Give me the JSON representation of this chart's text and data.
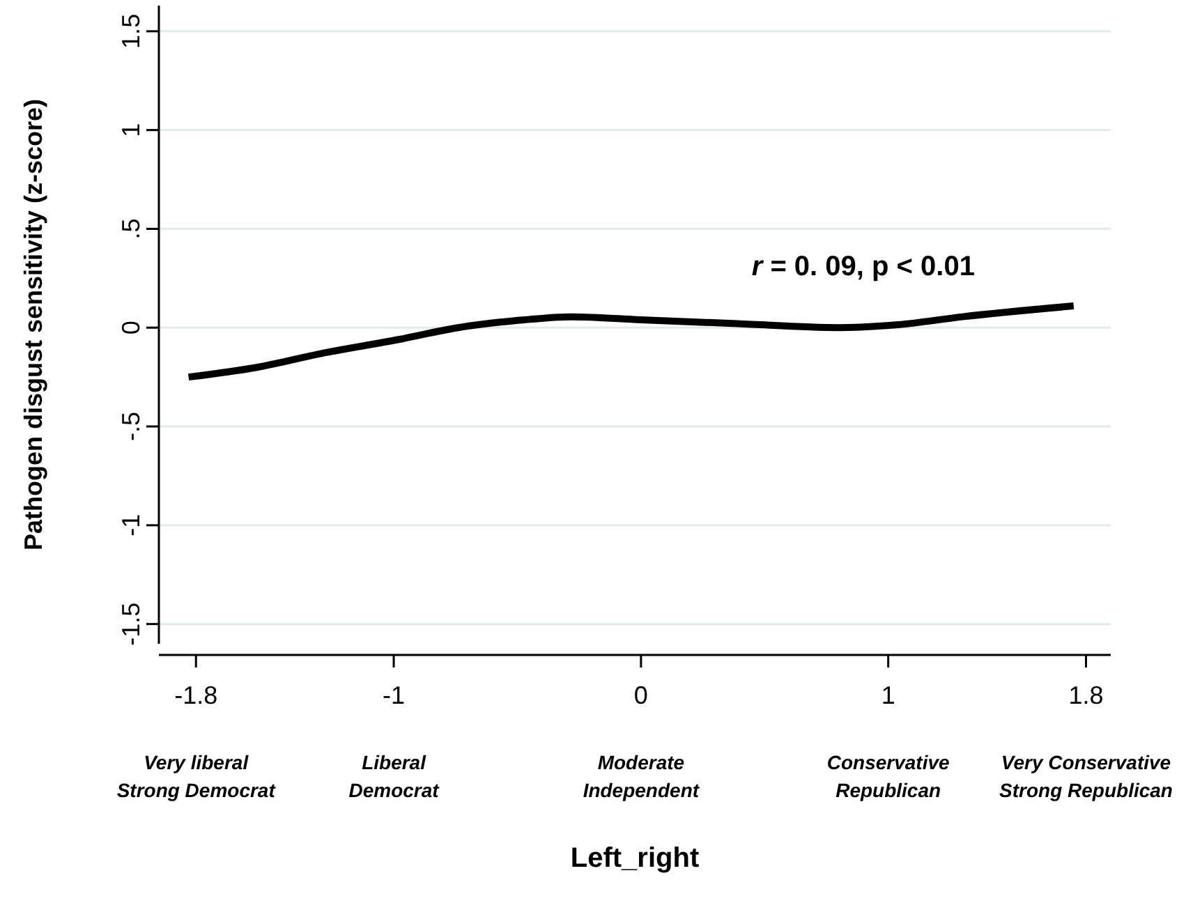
{
  "chart_data": {
    "type": "line",
    "xlabel": "Left_right",
    "ylabel": "Pathogen disgust sensitivity (z-score)",
    "series": [
      {
        "color": "#000000",
        "x": [
          -1.83,
          -1.55,
          -1.29,
          -0.98,
          -0.74,
          -0.51,
          -0.28,
          0.0,
          0.39,
          0.8,
          1.04,
          1.3,
          1.75
        ],
        "values": [
          -0.25,
          -0.2,
          -0.13,
          -0.06,
          0.0,
          0.035,
          0.055,
          0.04,
          0.02,
          0.0,
          0.015,
          0.055,
          0.11
        ]
      }
    ],
    "xlim": [
      -1.95,
      1.9
    ],
    "ylim": [
      -1.6,
      1.63
    ],
    "xticks": [
      -1.8,
      -1,
      0,
      1,
      1.8
    ],
    "yticks": [
      {
        "value": -1.5,
        "label": "-1.5"
      },
      {
        "value": -1,
        "label": "-1"
      },
      {
        "value": -0.5,
        "label": "-.5"
      },
      {
        "value": 0,
        "label": "0"
      },
      {
        "value": 0.5,
        "label": ".5"
      },
      {
        "value": 1,
        "label": "1"
      },
      {
        "value": 1.5,
        "label": "1.5"
      }
    ],
    "grid": "y",
    "marker": "none",
    "line_style": "solid",
    "annotations": [
      "r = 0. 09, p < 0.01",
      "Very liberal\nStrong Democrat",
      "Liberal\nDemocrat",
      "Moderate\nIndependent",
      "Conservative\nRepublican",
      "Very Conservative\nStrong Republican"
    ]
  }
}
